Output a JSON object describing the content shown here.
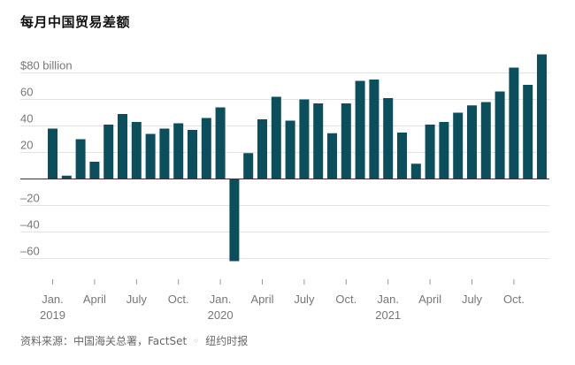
{
  "title": "每月中国贸易差额",
  "source": {
    "text": "资料来源：中国海关总署，FactSet",
    "separator": "◦",
    "credit": "纽约时报"
  },
  "chart_data": {
    "type": "bar",
    "title": "每月中国贸易差额",
    "ylabel": "",
    "xlabel": "",
    "bar_color": "#0b4f5c",
    "ylim": [
      -75,
      90
    ],
    "y_ticks": [
      {
        "value": 80,
        "label": "$80 billion"
      },
      {
        "value": 60,
        "label": "60"
      },
      {
        "value": 40,
        "label": "40"
      },
      {
        "value": 20,
        "label": "20"
      },
      {
        "value": -20,
        "label": "–20"
      },
      {
        "value": -40,
        "label": "–40"
      },
      {
        "value": -60,
        "label": "–60"
      }
    ],
    "x_ticks": [
      {
        "index": 0,
        "label": "Jan.",
        "year": "2019"
      },
      {
        "index": 3,
        "label": "April"
      },
      {
        "index": 6,
        "label": "July"
      },
      {
        "index": 9,
        "label": "Oct."
      },
      {
        "index": 12,
        "label": "Jan.",
        "year": "2020"
      },
      {
        "index": 15,
        "label": "April"
      },
      {
        "index": 18,
        "label": "July"
      },
      {
        "index": 21,
        "label": "Oct."
      },
      {
        "index": 24,
        "label": "Jan.",
        "year": "2021"
      },
      {
        "index": 27,
        "label": "April"
      },
      {
        "index": 30,
        "label": "July"
      },
      {
        "index": 33,
        "label": "Oct."
      }
    ],
    "categories": [
      "2019-01",
      "2019-02",
      "2019-03",
      "2019-04",
      "2019-05",
      "2019-06",
      "2019-07",
      "2019-08",
      "2019-09",
      "2019-10",
      "2019-11",
      "2019-12",
      "2020-01",
      "2020-02",
      "2020-03",
      "2020-04",
      "2020-05",
      "2020-06",
      "2020-07",
      "2020-08",
      "2020-09",
      "2020-10",
      "2020-11",
      "2020-12",
      "2021-01",
      "2021-02",
      "2021-03",
      "2021-04",
      "2021-05",
      "2021-06",
      "2021-07",
      "2021-08",
      "2021-09",
      "2021-10",
      "2021-11",
      "2021-12"
    ],
    "values": [
      38,
      2.5,
      30,
      13,
      41,
      49,
      43,
      34,
      38,
      42,
      37,
      46,
      54,
      -62,
      19.5,
      45,
      62,
      44,
      60,
      57,
      34.5,
      57,
      74,
      75,
      61,
      35,
      11.5,
      41,
      43,
      50,
      55.5,
      58,
      66,
      84,
      71,
      94
    ]
  }
}
